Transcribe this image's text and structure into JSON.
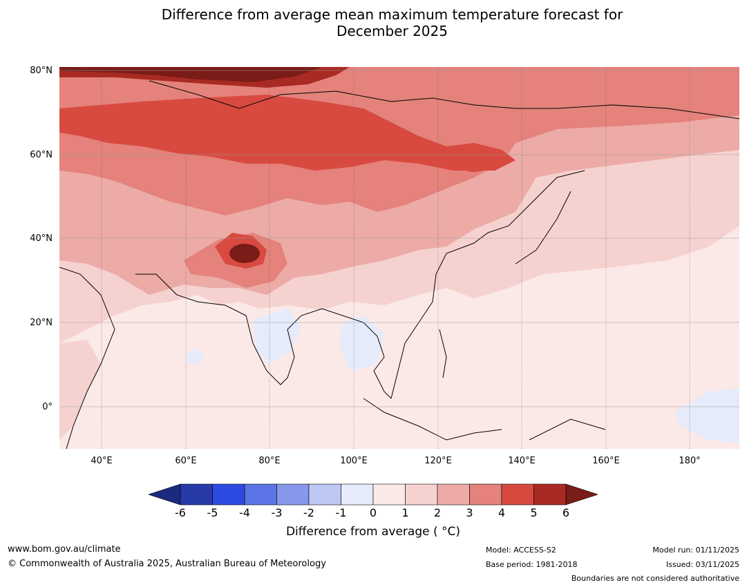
{
  "title": {
    "line1": "Difference from average mean maximum temperature forecast for",
    "line2": "December 2025"
  },
  "map": {
    "latitude_labels": [
      "80°N",
      "60°N",
      "40°N",
      "20°N",
      "0°"
    ],
    "longitude_labels": [
      "40°E",
      "60°E",
      "80°E",
      "100°E",
      "120°E",
      "140°E",
      "160°E",
      "180°"
    ],
    "lat_range": [
      -10,
      80
    ],
    "lon_range": [
      30,
      191
    ],
    "region": "Asia"
  },
  "colorbar": {
    "title": "Difference from average ( °C)",
    "title_display": "Difference from average ( °C)",
    "ticks": [
      "-6",
      "-5",
      "-4",
      "-3",
      "-2",
      "-1",
      "0",
      "1",
      "2",
      "3",
      "4",
      "5",
      "6"
    ],
    "colors": [
      "#273aa8",
      "#2d4be0",
      "#5b74e6",
      "#8797ea",
      "#bfc8f4",
      "#e6ebfb",
      "#fbe9e8",
      "#f5d2cf",
      "#ecaba6",
      "#e4827b",
      "#d84a40",
      "#a92a22"
    ],
    "under_color": "#1a2a80",
    "over_color": "#7a1c18"
  },
  "footer": {
    "url": "www.bom.gov.au/climate",
    "copyright": "© Commonwealth of Australia 2025, Australian Bureau of Meteorology",
    "model": "Model: ACCESS-S2",
    "base_period": "Base period: 1981-2018",
    "model_run": "Model run: 01/11/2025",
    "issued": "Issued: 03/11/2025",
    "disclaimer": "Boundaries are not considered authoritative"
  }
}
